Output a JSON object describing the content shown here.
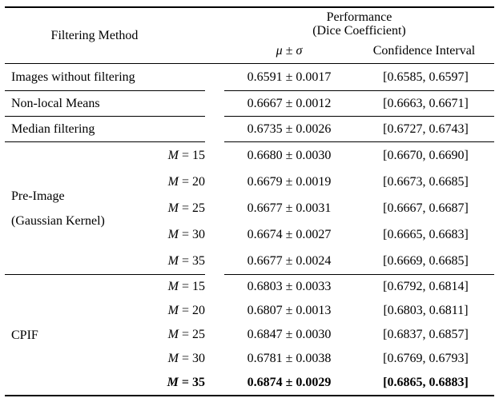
{
  "table": {
    "header": {
      "filtering_method": "Filtering Method",
      "performance_line1": "Performance",
      "performance_line2": "(Dice Coefficient)",
      "mu_sigma": "μ ± σ",
      "confidence_interval": "Confidence Interval"
    },
    "sections": [
      {
        "method": "Images without filtering",
        "rows": [
          {
            "mu": "0.6591 ± 0.0017",
            "ci": "[0.6585, 0.6597]"
          }
        ]
      },
      {
        "method": "Non-local Means",
        "rows": [
          {
            "mu": "0.6667 ± 0.0012",
            "ci": "[0.6663, 0.6671]"
          }
        ]
      },
      {
        "method": "Median filtering",
        "rows": [
          {
            "mu": "0.6735 ± 0.0026",
            "ci": "[0.6727, 0.6743]"
          }
        ]
      },
      {
        "method_line1": "Pre-Image",
        "method_line2": "(Gaussian Kernel)",
        "rows": [
          {
            "m_var": "M",
            "m_rest": "= 15",
            "mu": "0.6680 ± 0.0030",
            "ci": "[0.6670, 0.6690]"
          },
          {
            "m_var": "M",
            "m_rest": "= 20",
            "mu": "0.6679 ± 0.0019",
            "ci": "[0.6673, 0.6685]"
          },
          {
            "m_var": "M",
            "m_rest": "= 25",
            "mu": "0.6677 ± 0.0031",
            "ci": "[0.6667, 0.6687]"
          },
          {
            "m_var": "M",
            "m_rest": "= 30",
            "mu": "0.6674 ± 0.0027",
            "ci": "[0.6665, 0.6683]"
          },
          {
            "m_var": "M",
            "m_rest": "= 35",
            "mu": "0.6677 ± 0.0024",
            "ci": "[0.6669, 0.6685]"
          }
        ]
      },
      {
        "method": "CPIF",
        "rows": [
          {
            "m_var": "M",
            "m_rest": "= 15",
            "mu": "0.6803 ± 0.0033",
            "ci": "[0.6792, 0.6814]"
          },
          {
            "m_var": "M",
            "m_rest": "= 20",
            "mu": "0.6807 ± 0.0013",
            "ci": "[0.6803, 0.6811]"
          },
          {
            "m_var": "M",
            "m_rest": "= 25",
            "mu": "0.6847 ± 0.0030",
            "ci": "[0.6837, 0.6857]"
          },
          {
            "m_var": "M",
            "m_rest": "= 30",
            "mu": "0.6781 ± 0.0038",
            "ci": "[0.6769, 0.6793]"
          },
          {
            "m_var": "M",
            "m_rest": "= 35",
            "mu": "0.6874 ± 0.0029",
            "ci": "[0.6865, 0.6883]"
          }
        ]
      }
    ]
  }
}
